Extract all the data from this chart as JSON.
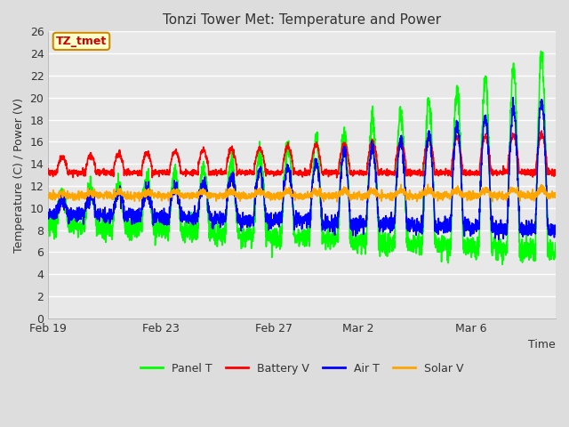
{
  "title": "Tonzi Tower Met: Temperature and Power",
  "xlabel": "Time",
  "ylabel": "Temperature (C) / Power (V)",
  "ylim": [
    0,
    26
  ],
  "yticks": [
    0,
    2,
    4,
    6,
    8,
    10,
    12,
    14,
    16,
    18,
    20,
    22,
    24,
    26
  ],
  "xtick_labels": [
    "Feb 19",
    "Feb 23",
    "Feb 27",
    "Mar 2",
    "Mar 6"
  ],
  "xtick_positions": [
    0,
    4,
    8,
    11,
    15
  ],
  "n_days": 18,
  "colors": {
    "panel_t": "#00FF00",
    "battery_v": "#FF0000",
    "air_t": "#0000FF",
    "solar_v": "#FFA500"
  },
  "legend_labels": [
    "Panel T",
    "Battery V",
    "Air T",
    "Solar V"
  ],
  "annotation_text": "TZ_tmet",
  "annotation_color": "#CC0000",
  "annotation_bg": "#FFFFCC",
  "annotation_border": "#CC8800",
  "bg_color": "#DDDDDD",
  "plot_bg": "#E8E8E8",
  "grid_color": "#FFFFFF",
  "line_width": 1.2,
  "title_fontsize": 11,
  "label_fontsize": 9,
  "tick_fontsize": 9,
  "legend_fontsize": 9
}
